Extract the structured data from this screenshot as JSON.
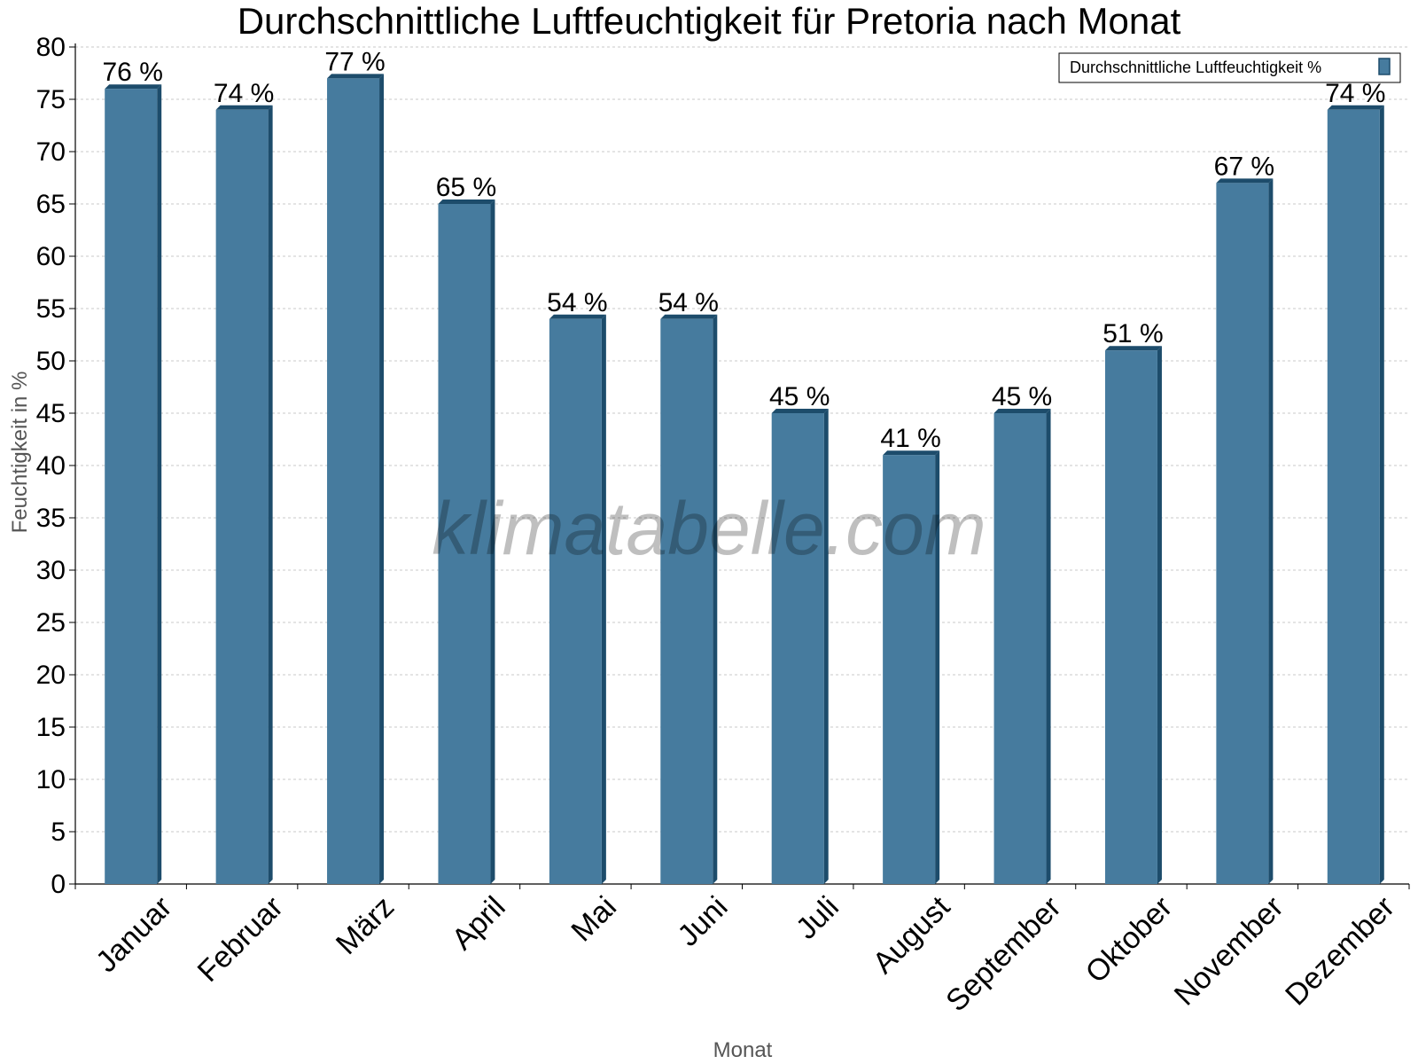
{
  "chart_data": {
    "type": "bar",
    "title": "Durchschnittliche Luftfeuchtigkeit für Pretoria nach Monat",
    "xlabel": "Monat",
    "ylabel": "Feuchtigkeit in %",
    "ylim": [
      0,
      80
    ],
    "yticks": [
      0,
      5,
      10,
      15,
      20,
      25,
      30,
      35,
      40,
      45,
      50,
      55,
      60,
      65,
      70,
      75,
      80
    ],
    "grid": true,
    "legend_position": "top-right",
    "categories": [
      "Januar",
      "Februar",
      "März",
      "April",
      "Mai",
      "Juni",
      "Juli",
      "August",
      "September",
      "Oktober",
      "November",
      "Dezember"
    ],
    "series": [
      {
        "name": "Durchschnittliche Luftfeuchtigkeit %",
        "values": [
          76,
          74,
          77,
          65,
          54,
          54,
          45,
          41,
          45,
          51,
          67,
          74
        ],
        "value_labels": [
          "76 %",
          "74 %",
          "77 %",
          "65 %",
          "54 %",
          "54 %",
          "45 %",
          "41 %",
          "45 %",
          "51 %",
          "67 %",
          "74 %"
        ],
        "color": "#467b9e",
        "edge_color": "#1d4c6b"
      }
    ],
    "watermark": "klimatabelle.com"
  }
}
